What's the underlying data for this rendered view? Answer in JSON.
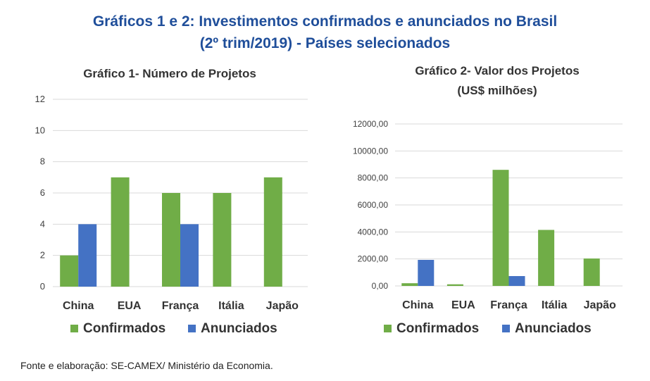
{
  "title_line1": "Gráficos 1 e 2: Investimentos confirmados e anunciados no Brasil",
  "title_line2": "(2º trim/2019) - Países selecionados",
  "source": "Fonte e elaboração: SE-CAMEX/ Ministério da Economia.",
  "colors": {
    "confirmados": "#70ad47",
    "anunciados": "#4472c4",
    "grid": "#d9d9d9"
  },
  "chart_data": [
    {
      "type": "bar",
      "title": "Gráfico 1- Número de Projetos",
      "categories": [
        "China",
        "EUA",
        "França",
        "Itália",
        "Japão"
      ],
      "series": [
        {
          "name": "Confirmados",
          "values": [
            2,
            7,
            6,
            6,
            7
          ]
        },
        {
          "name": "Anunciados",
          "values": [
            4,
            0,
            4,
            0,
            0
          ]
        }
      ],
      "ylim": [
        0,
        12
      ],
      "yticks": [
        "0",
        "2",
        "4",
        "6",
        "8",
        "10",
        "12"
      ],
      "grid": true,
      "legend": "bottom"
    },
    {
      "type": "bar",
      "title_line1": "Gráfico 2-  Valor dos Projetos",
      "title_line2": "(US$ milhões)",
      "categories": [
        "China",
        "EUA",
        "França",
        "Itália",
        "Japão"
      ],
      "series": [
        {
          "name": "Confirmados",
          "values": [
            200,
            120,
            8600,
            4150,
            2030
          ]
        },
        {
          "name": "Anunciados",
          "values": [
            1930,
            0,
            730,
            0,
            0
          ]
        }
      ],
      "ylim": [
        0,
        12000
      ],
      "yticks": [
        "0,00",
        "2000,00",
        "4000,00",
        "6000,00",
        "8000,00",
        "10000,00",
        "12000,00"
      ],
      "grid": true,
      "legend": "bottom"
    }
  ]
}
